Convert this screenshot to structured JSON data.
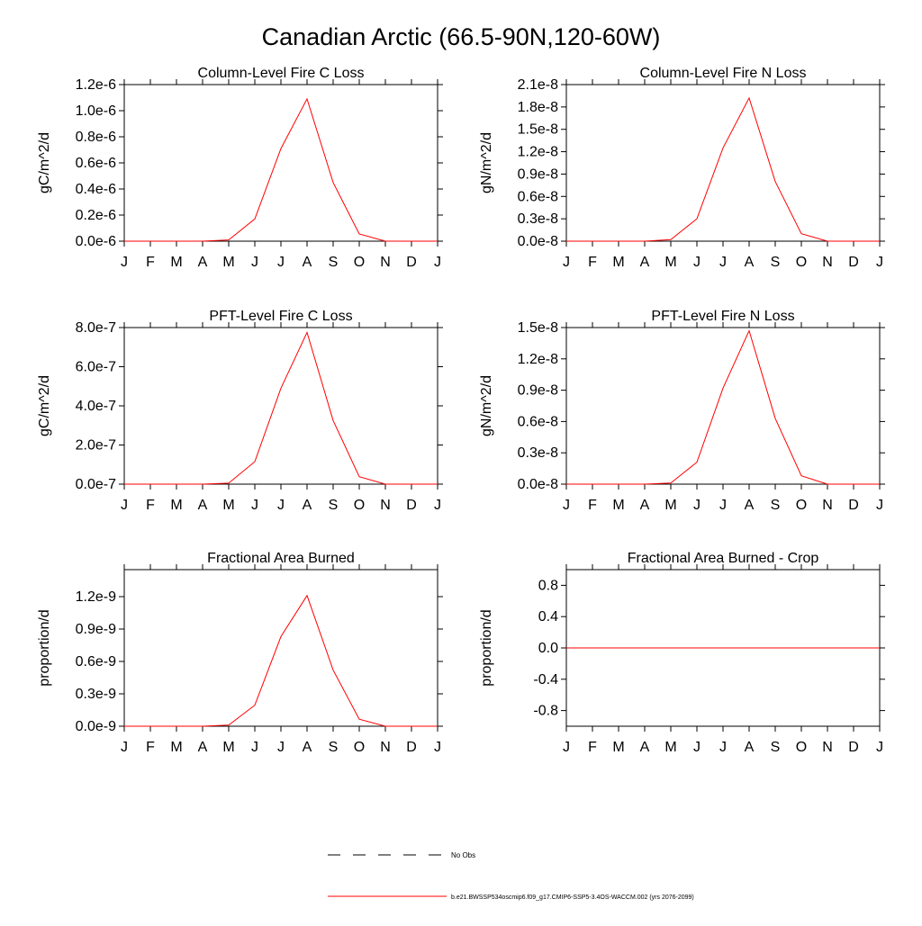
{
  "figure": {
    "title": "Canadian Arctic (66.5-90N,120-60W)",
    "months": [
      "J",
      "F",
      "M",
      "A",
      "M",
      "J",
      "J",
      "A",
      "S",
      "O",
      "N",
      "D",
      "J"
    ],
    "series_color": "#ff0000",
    "legend": {
      "no_obs": "No Obs",
      "model": "b.e21.BWSSP534oscmip6.f09_g17.CMIP6-SSP5-3.4OS-WACCM.002 (yrs 2076-2099)"
    }
  },
  "chart_data": [
    {
      "type": "line",
      "title": "Column-Level Fire C Loss",
      "ylabel": "gC/m^2/d",
      "ylim": [
        0,
        1.2e-06
      ],
      "yticks": [
        0,
        2e-07,
        4e-07,
        6e-07,
        8e-07,
        1e-06,
        1.2e-06
      ],
      "ytick_labels": [
        "0.0e-6",
        "0.2e-6",
        "0.4e-6",
        "0.6e-6",
        "0.8e-6",
        "1.0e-6",
        "1.2e-6"
      ],
      "x": [
        "J",
        "F",
        "M",
        "A",
        "M",
        "J",
        "J",
        "A",
        "S",
        "O",
        "N",
        "D",
        "J"
      ],
      "series": [
        {
          "values": [
            0,
            0,
            0,
            0,
            1e-08,
            1.7e-07,
            7.1e-07,
            1.09e-06,
            4.5e-07,
            5.5e-08,
            0,
            0,
            0
          ]
        }
      ]
    },
    {
      "type": "line",
      "title": "Column-Level Fire N Loss",
      "ylabel": "gN/m^2/d",
      "ylim": [
        0,
        2.1e-08
      ],
      "yticks": [
        0,
        3e-09,
        6e-09,
        9e-09,
        1.2e-08,
        1.5e-08,
        1.8e-08,
        2.1e-08
      ],
      "ytick_labels": [
        "0.0e-8",
        "0.3e-8",
        "0.6e-8",
        "0.9e-8",
        "1.2e-8",
        "1.5e-8",
        "1.8e-8",
        "2.1e-8"
      ],
      "x": [
        "J",
        "F",
        "M",
        "A",
        "M",
        "J",
        "J",
        "A",
        "S",
        "O",
        "N",
        "D",
        "J"
      ],
      "series": [
        {
          "values": [
            0,
            0,
            0,
            0,
            2e-10,
            3e-09,
            1.25e-08,
            1.92e-08,
            8e-09,
            1e-09,
            0,
            0,
            0
          ]
        }
      ]
    },
    {
      "type": "line",
      "title": "PFT-Level Fire C Loss",
      "ylabel": "gC/m^2/d",
      "ylim": [
        0,
        8e-07
      ],
      "yticks": [
        0,
        2e-07,
        4e-07,
        6e-07,
        8e-07
      ],
      "ytick_labels": [
        "0.0e-7",
        "2.0e-7",
        "4.0e-7",
        "6.0e-7",
        "8.0e-7"
      ],
      "x": [
        "J",
        "F",
        "M",
        "A",
        "M",
        "J",
        "J",
        "A",
        "S",
        "O",
        "N",
        "D",
        "J"
      ],
      "series": [
        {
          "values": [
            0,
            0,
            0,
            0,
            5e-09,
            1.15e-07,
            4.9e-07,
            7.75e-07,
            3.25e-07,
            3.8e-08,
            0,
            0,
            0
          ]
        }
      ]
    },
    {
      "type": "line",
      "title": "PFT-Level Fire N Loss",
      "ylabel": "gN/m^2/d",
      "ylim": [
        0,
        1.5e-08
      ],
      "yticks": [
        0,
        3e-09,
        6e-09,
        9e-09,
        1.2e-08,
        1.5e-08
      ],
      "ytick_labels": [
        "0.0e-8",
        "0.3e-8",
        "0.6e-8",
        "0.9e-8",
        "1.2e-8",
        "1.5e-8"
      ],
      "x": [
        "J",
        "F",
        "M",
        "A",
        "M",
        "J",
        "J",
        "A",
        "S",
        "O",
        "N",
        "D",
        "J"
      ],
      "series": [
        {
          "values": [
            0,
            0,
            0,
            0,
            1e-10,
            2.1e-09,
            9.2e-09,
            1.47e-08,
            6.3e-09,
            8e-10,
            0,
            0,
            0
          ]
        }
      ]
    },
    {
      "type": "line",
      "title": "Fractional Area Burned",
      "ylabel": "proportion/d",
      "ylim": [
        0,
        1.45e-09
      ],
      "yticks": [
        0,
        3e-10,
        6e-10,
        9e-10,
        1.2e-09
      ],
      "ytick_labels": [
        "0.0e-9",
        "0.3e-9",
        "0.6e-9",
        "0.9e-9",
        "1.2e-9"
      ],
      "x": [
        "J",
        "F",
        "M",
        "A",
        "M",
        "J",
        "J",
        "A",
        "S",
        "O",
        "N",
        "D",
        "J"
      ],
      "series": [
        {
          "values": [
            0,
            0,
            0,
            0,
            1e-11,
            1.95e-10,
            8.3e-10,
            1.21e-09,
            5.2e-10,
            6.5e-11,
            0,
            0,
            0
          ]
        }
      ]
    },
    {
      "type": "line",
      "title": "Fractional Area Burned - Crop",
      "ylabel": "proportion/d",
      "ylim": [
        -1,
        1
      ],
      "yticks": [
        -0.8,
        -0.4,
        0,
        0.4,
        0.8
      ],
      "ytick_labels": [
        "-0.8",
        "-0.4",
        "0.0",
        "0.4",
        "0.8"
      ],
      "x": [
        "J",
        "F",
        "M",
        "A",
        "M",
        "J",
        "J",
        "A",
        "S",
        "O",
        "N",
        "D",
        "J"
      ],
      "series": [
        {
          "values": [
            0,
            0,
            0,
            0,
            0,
            0,
            0,
            0,
            0,
            0,
            0,
            0,
            0
          ]
        }
      ]
    }
  ]
}
